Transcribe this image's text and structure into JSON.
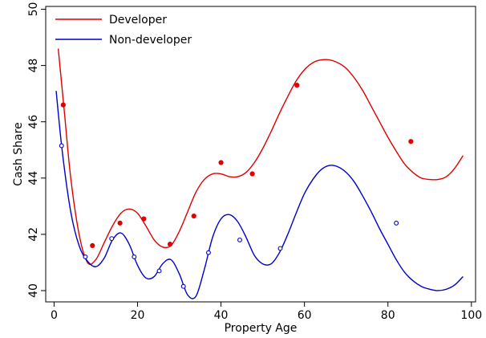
{
  "chart_data": {
    "type": "scatter",
    "xlabel": "Property Age",
    "ylabel": "Cash Share",
    "xlim": [
      -2,
      101
    ],
    "ylim": [
      39.6,
      50.1
    ],
    "x_ticks": [
      0,
      20,
      40,
      60,
      80,
      100
    ],
    "y_ticks": [
      40,
      42,
      44,
      46,
      48,
      50
    ],
    "grid": false,
    "legend_position": "top-left",
    "series": [
      {
        "name": "Developer",
        "color": "#e00000",
        "marker": "filled-circle",
        "points": [
          [
            2.2,
            46.6
          ],
          [
            9.2,
            41.6
          ],
          [
            15.8,
            42.4
          ],
          [
            21.5,
            42.55
          ],
          [
            27.8,
            41.65
          ],
          [
            33.5,
            42.65
          ],
          [
            40.0,
            44.55
          ],
          [
            47.5,
            44.15
          ],
          [
            58.2,
            47.3
          ],
          [
            85.5,
            45.3
          ]
        ],
        "curve": [
          [
            1.0,
            48.6
          ],
          [
            2.5,
            46.3
          ],
          [
            4.0,
            44.0
          ],
          [
            6.0,
            42.0
          ],
          [
            8.0,
            41.0
          ],
          [
            10.0,
            41.1
          ],
          [
            12.0,
            41.7
          ],
          [
            14.0,
            42.3
          ],
          [
            16.0,
            42.75
          ],
          [
            18.0,
            42.9
          ],
          [
            20.0,
            42.75
          ],
          [
            22.0,
            42.3
          ],
          [
            24.0,
            41.8
          ],
          [
            26.0,
            41.55
          ],
          [
            28.0,
            41.6
          ],
          [
            30.0,
            42.1
          ],
          [
            32.0,
            42.8
          ],
          [
            34.0,
            43.5
          ],
          [
            36.0,
            43.95
          ],
          [
            38.0,
            44.15
          ],
          [
            40.0,
            44.15
          ],
          [
            42.0,
            44.05
          ],
          [
            44.0,
            44.05
          ],
          [
            46.0,
            44.2
          ],
          [
            48.0,
            44.55
          ],
          [
            50.0,
            45.05
          ],
          [
            52.0,
            45.65
          ],
          [
            54.0,
            46.3
          ],
          [
            56.0,
            46.9
          ],
          [
            58.0,
            47.45
          ],
          [
            60.0,
            47.85
          ],
          [
            62.0,
            48.1
          ],
          [
            64.0,
            48.2
          ],
          [
            66.0,
            48.2
          ],
          [
            68.0,
            48.1
          ],
          [
            70.0,
            47.9
          ],
          [
            72.0,
            47.55
          ],
          [
            74.0,
            47.1
          ],
          [
            76.0,
            46.55
          ],
          [
            78.0,
            46.0
          ],
          [
            80.0,
            45.45
          ],
          [
            82.0,
            44.95
          ],
          [
            84.0,
            44.5
          ],
          [
            86.0,
            44.2
          ],
          [
            88.0,
            44.0
          ],
          [
            90.0,
            43.95
          ],
          [
            92.0,
            43.95
          ],
          [
            94.0,
            44.05
          ],
          [
            96.0,
            44.35
          ],
          [
            98.0,
            44.8
          ]
        ]
      },
      {
        "name": "Non-developer",
        "color": "#0000cc",
        "marker": "hollow-circle",
        "points": [
          [
            1.8,
            45.15
          ],
          [
            7.5,
            41.2
          ],
          [
            13.8,
            41.85
          ],
          [
            19.2,
            41.2
          ],
          [
            25.2,
            40.7
          ],
          [
            31.0,
            40.15
          ],
          [
            37.0,
            41.35
          ],
          [
            44.5,
            41.8
          ],
          [
            54.2,
            41.5
          ],
          [
            82.0,
            42.4
          ]
        ],
        "curve": [
          [
            0.5,
            47.1
          ],
          [
            2.0,
            44.9
          ],
          [
            4.0,
            42.8
          ],
          [
            6.0,
            41.6
          ],
          [
            8.0,
            41.05
          ],
          [
            10.0,
            40.85
          ],
          [
            12.0,
            41.15
          ],
          [
            14.0,
            41.8
          ],
          [
            16.0,
            42.05
          ],
          [
            18.0,
            41.65
          ],
          [
            20.0,
            40.9
          ],
          [
            22.0,
            40.45
          ],
          [
            24.0,
            40.5
          ],
          [
            26.0,
            40.95
          ],
          [
            28.0,
            41.1
          ],
          [
            30.0,
            40.6
          ],
          [
            32.0,
            39.85
          ],
          [
            34.0,
            39.8
          ],
          [
            36.0,
            40.75
          ],
          [
            38.0,
            41.9
          ],
          [
            40.0,
            42.55
          ],
          [
            42.0,
            42.7
          ],
          [
            44.0,
            42.45
          ],
          [
            46.0,
            41.9
          ],
          [
            48.0,
            41.25
          ],
          [
            50.0,
            40.95
          ],
          [
            52.0,
            40.95
          ],
          [
            54.0,
            41.35
          ],
          [
            56.0,
            42.0
          ],
          [
            58.0,
            42.75
          ],
          [
            60.0,
            43.45
          ],
          [
            62.0,
            43.95
          ],
          [
            64.0,
            44.3
          ],
          [
            66.0,
            44.45
          ],
          [
            68.0,
            44.4
          ],
          [
            70.0,
            44.2
          ],
          [
            72.0,
            43.85
          ],
          [
            74.0,
            43.35
          ],
          [
            76.0,
            42.8
          ],
          [
            78.0,
            42.2
          ],
          [
            80.0,
            41.65
          ],
          [
            82.0,
            41.1
          ],
          [
            84.0,
            40.65
          ],
          [
            86.0,
            40.35
          ],
          [
            88.0,
            40.15
          ],
          [
            90.0,
            40.05
          ],
          [
            92.0,
            40.0
          ],
          [
            94.0,
            40.05
          ],
          [
            96.0,
            40.2
          ],
          [
            98.0,
            40.5
          ]
        ]
      }
    ]
  }
}
